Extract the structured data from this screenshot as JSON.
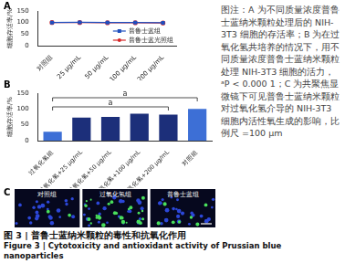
{
  "chart_data": [
    {
      "panel_label": "A",
      "type": "line",
      "categories": [
        "对照组",
        "25 μg/mL",
        "50 μg/mL",
        "100 μg/mL",
        "200 μg/mL"
      ],
      "series": [
        {
          "name": "普鲁士蓝组",
          "color": "#1f4fbf",
          "marker": "square",
          "values": [
            100,
            101,
            100,
            100,
            99
          ]
        },
        {
          "name": "普鲁士蓝光照组",
          "color": "#d62728",
          "marker": "circle",
          "values": [
            100,
            100,
            99,
            99,
            98
          ]
        }
      ],
      "y_label": "细胞存活率/%",
      "ylim": [
        0,
        150
      ],
      "yticks": [
        0,
        50,
        100,
        150
      ],
      "grid": false,
      "legend": "lower right"
    },
    {
      "panel_label": "B",
      "type": "bar",
      "categories": [
        "过氧化氢组",
        "过氧化氢+25 μg/mL",
        "过氧化氢+50 μg/mL",
        "过氧化氢+100 μg/mL",
        "过氧化氢+200 μg/mL",
        "对照组"
      ],
      "values": [
        28,
        73,
        75,
        85,
        82,
        100
      ],
      "colors": [
        "#3d6fd6",
        "#1c2f7a",
        "#1c2f7a",
        "#1c2f7a",
        "#1c2f7a",
        "#3d6fd6"
      ],
      "y_label": "细胞存活率/%",
      "ylim": [
        0,
        150
      ],
      "yticks": [
        0,
        50,
        100,
        150
      ],
      "grid": false,
      "significance": [
        {
          "from": "过氧化氢组",
          "to": "过氧化氢+200 μg/mL",
          "label": "a"
        },
        {
          "from": "过氧化氢组",
          "to": "对照组",
          "label": "a"
        }
      ]
    }
  ],
  "panel_c": {
    "panel_label": "C",
    "images": [
      "对照组",
      "过氧化氢组",
      "普鲁士蓝组"
    ]
  },
  "side_note": "图注：A 为不同质量浓度普鲁士蓝纳米颗粒处理后的 NIH-3T3 细胞的存活率；B 为在过氧化氢共培养的情况下，用不同质量浓度普鲁士蓝纳米颗粒处理 NIH-3T3 细胞的活力，ᵃP < 0.000 1；C 为共聚焦显微镜下可见普鲁士蓝纳米颗粒对过氧化氢介导的 NIH-3T3 细胞内活性氧生成的影响，比例尺 =100 μm",
  "figure_title_zh": "图 3 | 普鲁士蓝纳米颗粒的毒性和抗氧化作用",
  "figure_title_en": "Figure 3 | Cytotoxicity and antioxidant activity of Prussian blue nanoparticles"
}
